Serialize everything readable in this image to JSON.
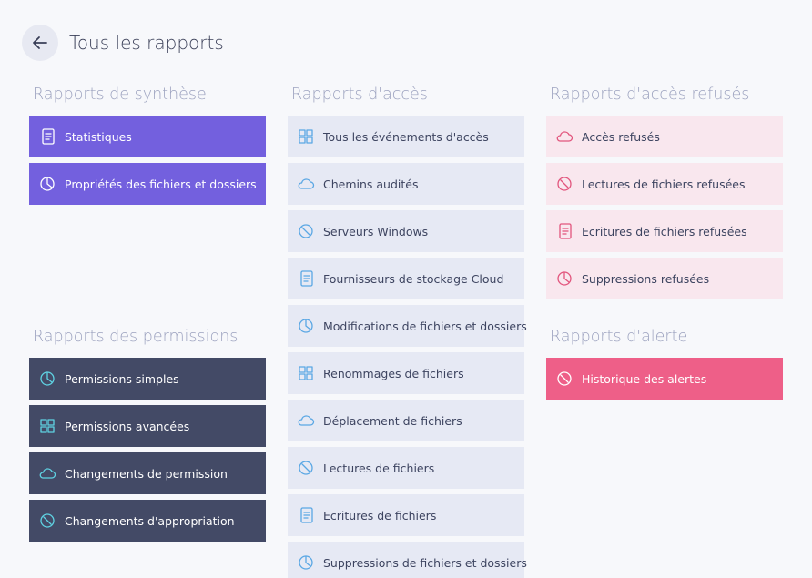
{
  "header": {
    "title": "Tous les rapports"
  },
  "sections": [
    {
      "title": "Rapports de synthèse",
      "items": [
        "Statistiques",
        "Propriétés des fichiers et dossiers"
      ]
    },
    {
      "title": "Rapports des permissions",
      "items": [
        "Permissions simples",
        "Permissions avancées",
        "Changements de permission",
        "Changements d'appropriation"
      ]
    },
    {
      "title": "Rapports d'accès",
      "items": [
        "Tous les événements d'accès",
        "Chemins audités",
        "Serveurs Windows",
        "Fournisseurs de stockage Cloud",
        "Modifications de fichiers et dossiers",
        "Renommages de fichiers",
        "Déplacement de fichiers",
        "Lectures de fichiers",
        "Ecritures de fichiers",
        "Suppressions de fichiers et dossiers"
      ]
    },
    {
      "title": "Rapports d'accès refusés",
      "items": [
        "Accès refusés",
        "Lectures de fichiers refusées",
        "Ecritures de fichiers refusées",
        "Suppressions refusées"
      ]
    },
    {
      "title": "Rapports d'alerte",
      "items": [
        "Historique des alertes"
      ]
    }
  ]
}
